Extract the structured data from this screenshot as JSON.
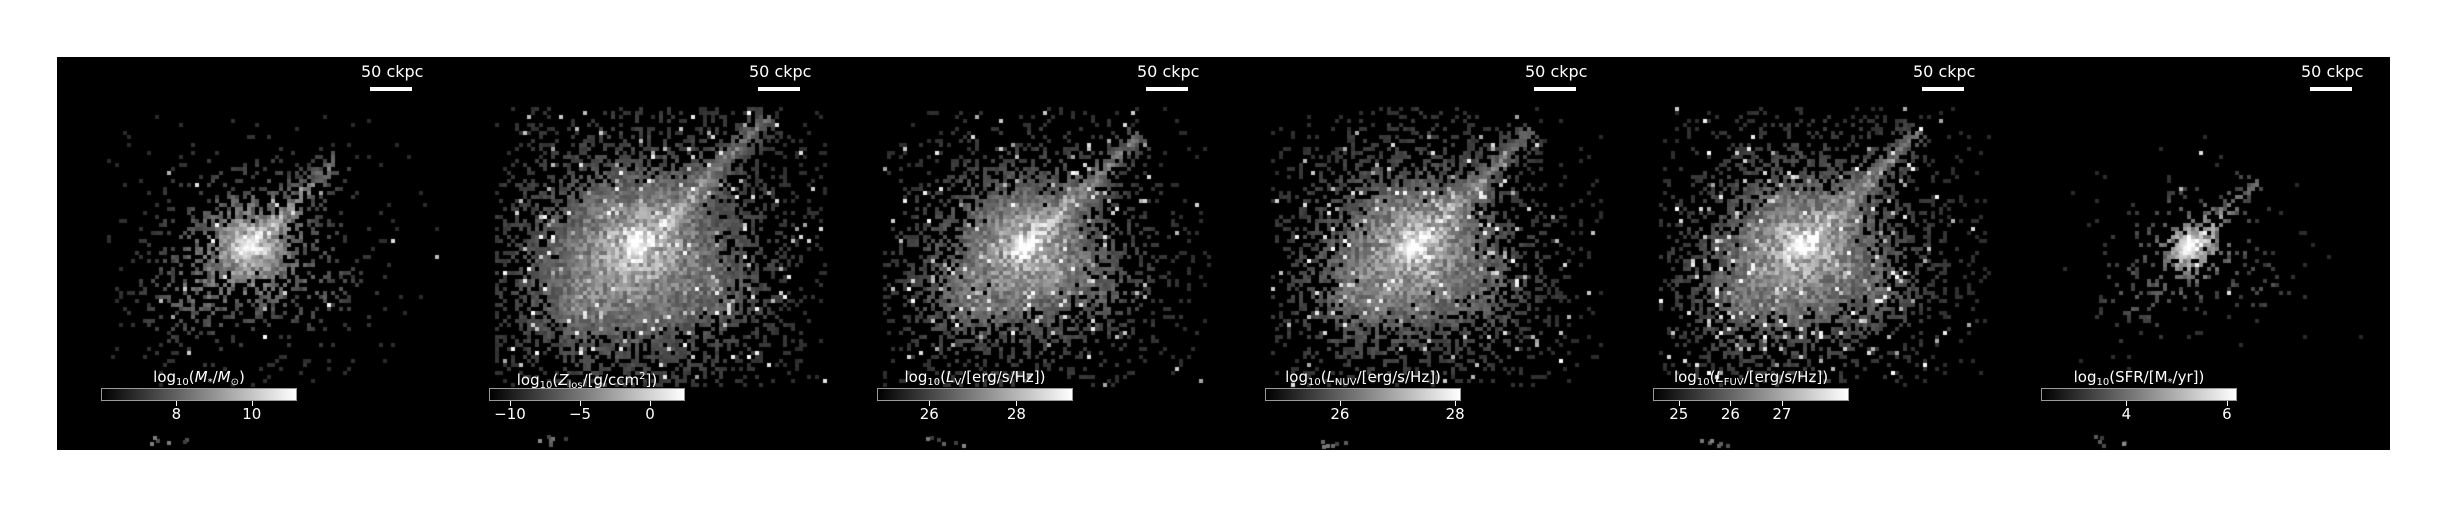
{
  "panels": [
    {
      "id": "stellar-mass",
      "scale_bar": "50 ckpc",
      "colorbar": {
        "label_prefix": "log",
        "label_base": "10",
        "label_open": "(",
        "label_var": "M",
        "label_var_sub": "*",
        "label_mid": "/",
        "label_unit": "M",
        "label_unit_sub": "⊙",
        "label_close": ")",
        "range": [
          6,
          11.2
        ],
        "ticks": [
          {
            "value": 8,
            "label": "8"
          },
          {
            "value": 10,
            "label": "10"
          }
        ]
      }
    },
    {
      "id": "metallicity",
      "scale_bar": "50 ckpc",
      "colorbar": {
        "label_prefix": "log",
        "label_base": "10",
        "label_open": "(",
        "label_var": "Z",
        "label_var_sub": "los",
        "label_mid": "/[g/ccm",
        "label_sup": "2",
        "label_close": "])",
        "range": [
          -11.5,
          2.5
        ],
        "ticks": [
          {
            "value": -10,
            "label": "−10"
          },
          {
            "value": -5,
            "label": "−5"
          },
          {
            "value": 0,
            "label": "0"
          }
        ]
      }
    },
    {
      "id": "lum-v",
      "scale_bar": "50 ckpc",
      "colorbar": {
        "label_prefix": "log",
        "label_base": "10",
        "label_open": "(",
        "label_var": "L",
        "label_var_sub": "V",
        "label_mid": "/[erg/s/Hz])",
        "range": [
          24.8,
          29.3
        ],
        "ticks": [
          {
            "value": 26,
            "label": "26"
          },
          {
            "value": 28,
            "label": "28"
          }
        ]
      }
    },
    {
      "id": "lum-nuv",
      "scale_bar": "50 ckpc",
      "colorbar": {
        "label_prefix": "log",
        "label_base": "10",
        "label_open": "(",
        "label_var": "L",
        "label_var_sub": "NUV",
        "label_mid": "/[erg/s/Hz])",
        "range": [
          24.7,
          28.1
        ],
        "ticks": [
          {
            "value": 26,
            "label": "26"
          },
          {
            "value": 28,
            "label": "28"
          }
        ]
      }
    },
    {
      "id": "lum-fuv",
      "scale_bar": "50 ckpc",
      "colorbar": {
        "label_prefix": "log",
        "label_base": "10",
        "label_open": "(",
        "label_var": "L",
        "label_var_sub": "FUV",
        "label_mid": "/[erg/s/Hz])",
        "range": [
          24.5,
          28.3
        ],
        "ticks": [
          {
            "value": 25,
            "label": "25"
          },
          {
            "value": 26,
            "label": "26"
          },
          {
            "value": 27,
            "label": "27"
          }
        ]
      }
    },
    {
      "id": "sfr",
      "scale_bar": "50 ckpc",
      "colorbar": {
        "label_prefix": "log",
        "label_base": "10",
        "label_open": "(SFR/[M",
        "label_var_sub": "*",
        "label_mid": "/yr])",
        "range": [
          2.3,
          6.2
        ],
        "ticks": [
          {
            "value": 4,
            "label": "4"
          },
          {
            "value": 6,
            "label": "6"
          }
        ]
      }
    }
  ]
}
